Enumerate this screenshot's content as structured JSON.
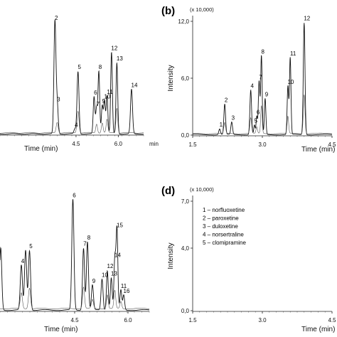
{
  "chart_data": [
    {
      "id": "a",
      "type": "line",
      "panel_label": "",
      "xlabel": "Time (min)",
      "x_unit": "min",
      "ylabel": "",
      "xlim": [
        1.8,
        6.9
      ],
      "ylim": [
        0,
        13
      ],
      "x_ticks": [
        {
          "v": 4.5,
          "label": "4.5"
        },
        {
          "v": 6.0,
          "label": "6.0"
        }
      ],
      "peaks": [
        {
          "label": "2",
          "x": 3.75,
          "h": 11.8,
          "w": 0.035
        },
        {
          "label": "3",
          "x": 3.83,
          "h": 3.2,
          "w": 0.035
        },
        {
          "label": "4",
          "x": 4.46,
          "h": 0.5,
          "w": 0.035
        },
        {
          "label": "5",
          "x": 4.57,
          "h": 6.6,
          "w": 0.035
        },
        {
          "label": "6",
          "x": 5.14,
          "h": 3.9,
          "w": 0.03
        },
        {
          "label": "7",
          "x": 5.23,
          "h": 2.7,
          "w": 0.03
        },
        {
          "label": "8",
          "x": 5.31,
          "h": 6.6,
          "w": 0.03
        },
        {
          "label": "9",
          "x": 5.43,
          "h": 3.0,
          "w": 0.03
        },
        {
          "label": "10",
          "x": 5.51,
          "h": 3.5,
          "w": 0.03
        },
        {
          "label": "11",
          "x": 5.6,
          "h": 4.0,
          "w": 0.03
        },
        {
          "label": "12",
          "x": 5.76,
          "h": 8.6,
          "w": 0.03
        },
        {
          "label": "13",
          "x": 5.95,
          "h": 7.5,
          "w": 0.03
        },
        {
          "label": "14",
          "x": 6.47,
          "h": 4.7,
          "w": 0.035
        }
      ]
    },
    {
      "id": "b",
      "type": "line",
      "panel_label": "(b)",
      "multiplier": "(x 10,000)",
      "xlabel": "Time (min)",
      "ylabel": "Intensity",
      "xlim": [
        1.5,
        4.5
      ],
      "ylim": [
        0,
        12.0
      ],
      "x_ticks": [
        {
          "v": 1.5,
          "label": "1.5"
        },
        {
          "v": 3.0,
          "label": "3.0"
        },
        {
          "v": 4.5,
          "label": "4.5"
        }
      ],
      "y_ticks": [
        {
          "v": 0.0,
          "label": "0,0"
        },
        {
          "v": 6.0,
          "label": "6,0"
        },
        {
          "v": 12.0,
          "label": "12,0"
        }
      ],
      "peaks": [
        {
          "label": "1",
          "x": 2.08,
          "h": 0.6,
          "w": 0.018
        },
        {
          "label": "2",
          "x": 2.19,
          "h": 3.2,
          "w": 0.018
        },
        {
          "label": "3",
          "x": 2.34,
          "h": 1.3,
          "w": 0.018
        },
        {
          "label": "4",
          "x": 2.75,
          "h": 4.7,
          "w": 0.018
        },
        {
          "label": "5",
          "x": 2.83,
          "h": 1.0,
          "w": 0.015
        },
        {
          "label": "6",
          "x": 2.88,
          "h": 1.9,
          "w": 0.015
        },
        {
          "label": "7",
          "x": 2.93,
          "h": 5.6,
          "w": 0.016
        },
        {
          "label": "8",
          "x": 2.98,
          "h": 8.3,
          "w": 0.016
        },
        {
          "label": "9",
          "x": 3.06,
          "h": 3.8,
          "w": 0.016
        },
        {
          "label": "10",
          "x": 3.55,
          "h": 5.1,
          "w": 0.016
        },
        {
          "label": "11",
          "x": 3.6,
          "h": 8.1,
          "w": 0.016
        },
        {
          "label": "12",
          "x": 3.9,
          "h": 11.8,
          "w": 0.018
        }
      ]
    },
    {
      "id": "c",
      "type": "line",
      "panel_label": "",
      "xlabel": "Time (min)",
      "ylabel": "",
      "xlim": [
        2.4,
        6.6
      ],
      "ylim": [
        0,
        10
      ],
      "x_ticks": [
        {
          "v": 4.5,
          "label": "4.5"
        },
        {
          "v": 6.0,
          "label": "6.0"
        }
      ],
      "peaks": [
        {
          "label": "",
          "x": 2.42,
          "h": 5.0,
          "w": 0.03
        },
        {
          "label": "4",
          "x": 3.0,
          "h": 3.6,
          "w": 0.03
        },
        {
          "label": "",
          "x": 3.12,
          "h": 4.8,
          "w": 0.03
        },
        {
          "label": "5",
          "x": 3.23,
          "h": 4.8,
          "w": 0.03
        },
        {
          "label": "6",
          "x": 4.45,
          "h": 8.9,
          "w": 0.03
        },
        {
          "label": "7",
          "x": 4.75,
          "h": 5.0,
          "w": 0.028
        },
        {
          "label": "8",
          "x": 4.86,
          "h": 5.5,
          "w": 0.028
        },
        {
          "label": "9",
          "x": 5.0,
          "h": 2.0,
          "w": 0.028
        },
        {
          "label": "10",
          "x": 5.27,
          "h": 2.5,
          "w": 0.028
        },
        {
          "label": "12",
          "x": 5.42,
          "h": 3.2,
          "w": 0.025
        },
        {
          "label": "13",
          "x": 5.53,
          "h": 2.6,
          "w": 0.025
        },
        {
          "label": "14",
          "x": 5.63,
          "h": 4.1,
          "w": 0.025
        },
        {
          "label": "15",
          "x": 5.69,
          "h": 6.5,
          "w": 0.025
        },
        {
          "label": "11",
          "x": 5.8,
          "h": 1.6,
          "w": 0.025
        },
        {
          "label": "16",
          "x": 5.88,
          "h": 1.2,
          "w": 0.025
        }
      ]
    },
    {
      "id": "d",
      "type": "line",
      "panel_label": "(d)",
      "multiplier": "(x 10,000)",
      "xlabel": "Time (min)",
      "ylabel": "Intensity",
      "xlim": [
        1.5,
        4.5
      ],
      "ylim": [
        0,
        7.0
      ],
      "x_ticks": [
        {
          "v": 1.5,
          "label": "1.5"
        },
        {
          "v": 3.0,
          "label": "3.0"
        },
        {
          "v": 4.5,
          "label": "4.5"
        }
      ],
      "y_ticks": [
        {
          "v": 0.0,
          "label": "0,0"
        },
        {
          "v": 4.0,
          "label": "4,0"
        },
        {
          "v": 7.0,
          "label": "7,0"
        }
      ],
      "legend": [
        "1 – norfluoxetine",
        "2 – paroxetine",
        "3 – duloxetine",
        "4 – norsertraline",
        "5 – clomipramine"
      ],
      "peaks": []
    }
  ]
}
